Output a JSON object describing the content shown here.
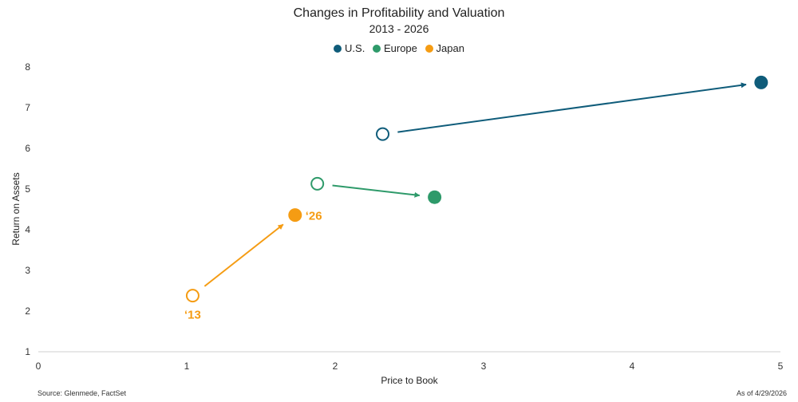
{
  "chart_data": {
    "type": "scatter",
    "title": "Changes in Profitability and Valuation",
    "subtitle": "2013 - 2026",
    "xlabel": "Price to Book",
    "ylabel": "Return on Assets",
    "xlim": [
      0,
      5
    ],
    "ylim": [
      1,
      8
    ],
    "xticks": [
      0,
      1,
      2,
      3,
      4,
      5
    ],
    "yticks": [
      1,
      2,
      3,
      4,
      5,
      6,
      7,
      8
    ],
    "grid": false,
    "legend_position": "top-center",
    "series": [
      {
        "name": "U.S.",
        "color": "#0f5c7a",
        "start": {
          "year": 2013,
          "x": 2.32,
          "y": 6.35
        },
        "end": {
          "year": 2026,
          "x": 4.87,
          "y": 7.62
        }
      },
      {
        "name": "Europe",
        "color": "#2e9a6a",
        "start": {
          "year": 2013,
          "x": 1.88,
          "y": 5.13
        },
        "end": {
          "year": 2026,
          "x": 2.67,
          "y": 4.8
        }
      },
      {
        "name": "Japan",
        "color": "#f59c13",
        "start": {
          "year": 2013,
          "x": 1.04,
          "y": 2.38
        },
        "end": {
          "year": 2026,
          "x": 1.73,
          "y": 4.36
        }
      }
    ],
    "annotations": [
      {
        "text": "‘13",
        "series": "Japan",
        "at": "start"
      },
      {
        "text": "‘26",
        "series": "Japan",
        "at": "end"
      }
    ]
  },
  "footer": {
    "source": "Source: Glenmede, FactSet",
    "as_of": "As of 4/29/2026"
  }
}
